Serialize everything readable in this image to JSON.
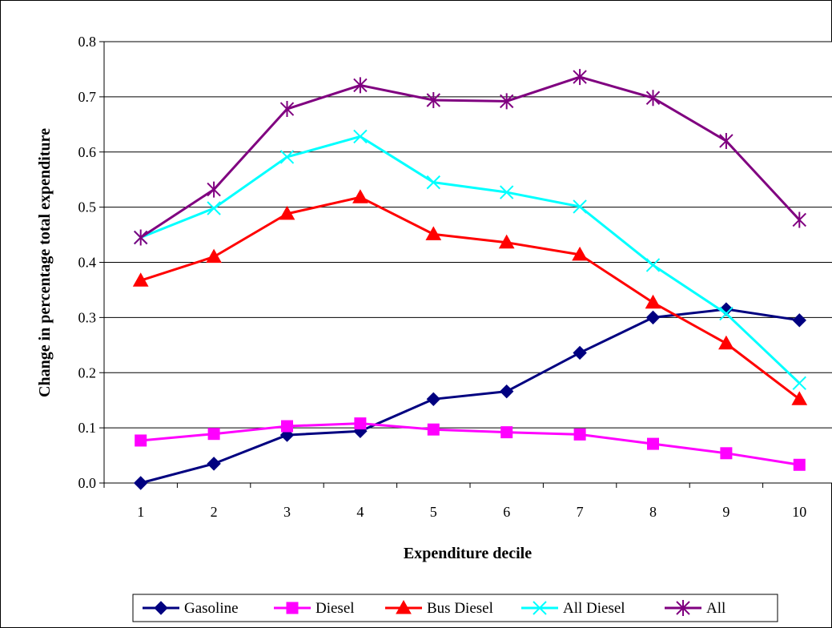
{
  "chart_data": {
    "type": "line",
    "title": "",
    "xlabel": "Expenditure decile",
    "ylabel": "Change in percentage total expenditure",
    "categories": [
      "1",
      "2",
      "3",
      "4",
      "5",
      "6",
      "7",
      "8",
      "9",
      "10"
    ],
    "yticks": [
      "0.0",
      "0.1",
      "0.2",
      "0.3",
      "0.4",
      "0.5",
      "0.6",
      "0.7",
      "0.8"
    ],
    "ylim": [
      0,
      0.8
    ],
    "grid": "horizontal",
    "legend_position": "bottom",
    "series": [
      {
        "name": "Gasoline",
        "color": "#000080",
        "marker": "diamond",
        "values": [
          0.0,
          0.035,
          0.087,
          0.094,
          0.152,
          0.166,
          0.236,
          0.3,
          0.315,
          0.295
        ]
      },
      {
        "name": "Diesel",
        "color": "#FF00FF",
        "marker": "square",
        "values": [
          0.077,
          0.089,
          0.103,
          0.108,
          0.097,
          0.092,
          0.088,
          0.071,
          0.054,
          0.033
        ]
      },
      {
        "name": "Bus Diesel",
        "color": "#FF0000",
        "marker": "triangle",
        "values": [
          0.367,
          0.41,
          0.488,
          0.518,
          0.451,
          0.436,
          0.414,
          0.327,
          0.253,
          0.152
        ]
      },
      {
        "name": "All Diesel",
        "color": "#00FFFF",
        "marker": "x",
        "values": [
          0.445,
          0.498,
          0.591,
          0.628,
          0.545,
          0.527,
          0.501,
          0.395,
          0.307,
          0.181
        ]
      },
      {
        "name": "All",
        "color": "#800080",
        "marker": "star",
        "values": [
          0.445,
          0.532,
          0.678,
          0.721,
          0.694,
          0.692,
          0.736,
          0.698,
          0.62,
          0.477
        ]
      }
    ]
  }
}
